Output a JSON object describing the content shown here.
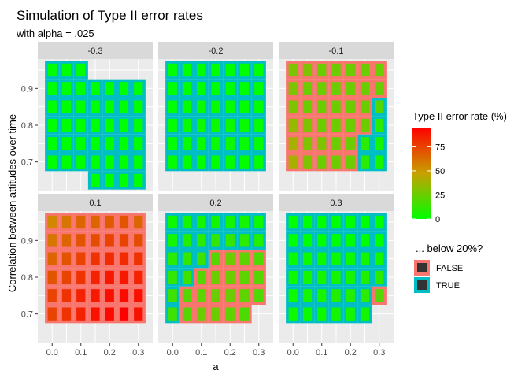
{
  "chart_data": {
    "type": "heatmap",
    "title": "Simulation of Type II error rates",
    "subtitle": "with alpha = .025",
    "xlabel": "a",
    "ylabel": "Correlation between attitudes over time",
    "x_ticks": [
      "0.0",
      "0.1",
      "0.2",
      "0.3"
    ],
    "x_tick_values": [
      0.0,
      0.1,
      0.2,
      0.3
    ],
    "y_ticks": [
      "0.7",
      "0.8",
      "0.9"
    ],
    "y_tick_values": [
      0.7,
      0.8,
      0.9
    ],
    "xlim": [
      -0.05,
      0.35
    ],
    "ylim": [
      0.62,
      0.98
    ],
    "grid_x": [
      0,
      0.05,
      0.1,
      0.15,
      0.2,
      0.25,
      0.3
    ],
    "grid_y": [
      0.7,
      0.75,
      0.8,
      0.85,
      0.9,
      0.95
    ],
    "legend_fill": {
      "title": "Type II error rate (%)",
      "ticks": [
        "0",
        "25",
        "50",
        "75"
      ],
      "tick_values": [
        0,
        25,
        50,
        75
      ],
      "range": [
        0,
        95
      ],
      "colors": [
        "#00ff00",
        "#ff0000"
      ]
    },
    "legend_color": {
      "title": "... below 20%?",
      "items": [
        {
          "label": "FALSE",
          "color": "#f8766d"
        },
        {
          "label": "TRUE",
          "color": "#00bfc4"
        }
      ]
    },
    "panel_bg": "#ebebeb",
    "strip_bg": "#d9d9d9",
    "panels": [
      {
        "label": "-0.3",
        "x0": 0.0,
        "dx": 0.05,
        "y0": 0.7,
        "dy": 0.05,
        "rows": [
          [
            0,
            0,
            0,
            0,
            0,
            0,
            0
          ],
          [
            0,
            0,
            0,
            0,
            0,
            0,
            0
          ],
          [
            0,
            0,
            0,
            0,
            0,
            0,
            0
          ],
          [
            0,
            0,
            0,
            0,
            0,
            0,
            0
          ],
          [
            0,
            0,
            0,
            0,
            0,
            0,
            0
          ],
          [
            0,
            0,
            0,
            null,
            null,
            null,
            null
          ],
          [
            null,
            null,
            null,
            0,
            0,
            0,
            0
          ]
        ],
        "flags": [
          [
            1,
            1,
            1,
            1,
            1,
            1,
            1
          ],
          [
            1,
            1,
            1,
            1,
            1,
            1,
            1
          ],
          [
            1,
            1,
            1,
            1,
            1,
            1,
            1
          ],
          [
            1,
            1,
            1,
            1,
            1,
            1,
            1
          ],
          [
            1,
            1,
            1,
            1,
            1,
            1,
            1
          ],
          [
            1,
            1,
            1,
            0,
            0,
            0,
            0
          ],
          [
            0,
            0,
            0,
            1,
            1,
            1,
            1
          ]
        ],
        "row_y": [
          0.7,
          0.75,
          0.8,
          0.85,
          0.9,
          0.95,
          0.65
        ]
      },
      {
        "label": "-0.2",
        "x0": 0.0,
        "dx": 0.05,
        "y0": 0.7,
        "dy": 0.05,
        "rows": [
          [
            1,
            1,
            1,
            1,
            1,
            1,
            1
          ],
          [
            1,
            2,
            2,
            3,
            3,
            2,
            1
          ],
          [
            1,
            2,
            3,
            3,
            3,
            2,
            1
          ],
          [
            0,
            1,
            2,
            2,
            1,
            1,
            0
          ],
          [
            0,
            0,
            0,
            0,
            0,
            0,
            0
          ],
          [
            0,
            0,
            0,
            0,
            0,
            0,
            0
          ]
        ],
        "flags": [
          [
            1,
            1,
            1,
            1,
            1,
            1,
            1
          ],
          [
            1,
            1,
            1,
            1,
            1,
            1,
            1
          ],
          [
            1,
            1,
            1,
            1,
            1,
            1,
            1
          ],
          [
            1,
            1,
            1,
            1,
            1,
            1,
            1
          ],
          [
            1,
            1,
            1,
            1,
            1,
            1,
            1
          ],
          [
            1,
            1,
            1,
            1,
            1,
            1,
            1
          ]
        ],
        "row_y": [
          0.7,
          0.75,
          0.8,
          0.85,
          0.9,
          0.95
        ]
      },
      {
        "label": "-0.1",
        "x0": 0.0,
        "dx": 0.05,
        "y0": 0.7,
        "dy": 0.05,
        "rows": [
          [
            40,
            30,
            25,
            25,
            25,
            10,
            5
          ],
          [
            40,
            30,
            30,
            25,
            25,
            10,
            5
          ],
          [
            35,
            30,
            25,
            25,
            25,
            25,
            10
          ],
          [
            30,
            25,
            25,
            25,
            25,
            25,
            20
          ],
          [
            30,
            25,
            25,
            25,
            25,
            25,
            25
          ],
          [
            30,
            30,
            25,
            25,
            25,
            25,
            25
          ]
        ],
        "flags": [
          [
            0,
            0,
            0,
            0,
            0,
            1,
            1
          ],
          [
            0,
            0,
            0,
            0,
            0,
            1,
            1
          ],
          [
            0,
            0,
            0,
            0,
            0,
            0,
            1
          ],
          [
            0,
            0,
            0,
            0,
            0,
            0,
            1
          ],
          [
            0,
            0,
            0,
            0,
            0,
            0,
            0
          ],
          [
            0,
            0,
            0,
            0,
            0,
            0,
            0
          ]
        ],
        "row_y": [
          0.7,
          0.75,
          0.8,
          0.85,
          0.9,
          0.95
        ]
      },
      {
        "label": "0.1",
        "x0": 0.0,
        "dx": 0.05,
        "y0": 0.7,
        "dy": 0.05,
        "rows": [
          [
            75,
            80,
            85,
            90,
            92,
            95,
            90
          ],
          [
            75,
            80,
            85,
            88,
            90,
            92,
            90
          ],
          [
            70,
            75,
            80,
            85,
            88,
            88,
            85
          ],
          [
            65,
            70,
            75,
            80,
            82,
            82,
            80
          ],
          [
            60,
            65,
            70,
            72,
            75,
            75,
            72
          ],
          [
            55,
            60,
            65,
            65,
            68,
            70,
            65
          ]
        ],
        "flags": [
          [
            0,
            0,
            0,
            0,
            0,
            0,
            0
          ],
          [
            0,
            0,
            0,
            0,
            0,
            0,
            0
          ],
          [
            0,
            0,
            0,
            0,
            0,
            0,
            0
          ],
          [
            0,
            0,
            0,
            0,
            0,
            0,
            0
          ],
          [
            0,
            0,
            0,
            0,
            0,
            0,
            0
          ],
          [
            0,
            0,
            0,
            0,
            0,
            0,
            0
          ]
        ],
        "row_y": [
          0.7,
          0.75,
          0.8,
          0.85,
          0.9,
          0.95
        ]
      },
      {
        "label": "0.2",
        "x0": 0.0,
        "dx": 0.05,
        "y0": 0.7,
        "dy": 0.05,
        "rows": [
          [
            15,
            20,
            25,
            25,
            22,
            18,
            null
          ],
          [
            15,
            20,
            22,
            25,
            25,
            22,
            18
          ],
          [
            12,
            15,
            20,
            25,
            25,
            22,
            20
          ],
          [
            10,
            12,
            15,
            20,
            25,
            22,
            18
          ],
          [
            5,
            8,
            10,
            12,
            12,
            10,
            8
          ],
          [
            3,
            5,
            5,
            5,
            5,
            5,
            3
          ]
        ],
        "flags": [
          [
            1,
            0,
            0,
            0,
            0,
            0,
            0
          ],
          [
            1,
            0,
            0,
            0,
            0,
            0,
            0
          ],
          [
            1,
            1,
            0,
            0,
            0,
            0,
            0
          ],
          [
            1,
            1,
            1,
            0,
            0,
            0,
            0
          ],
          [
            1,
            1,
            1,
            1,
            1,
            1,
            1
          ],
          [
            1,
            1,
            1,
            1,
            1,
            1,
            1
          ]
        ],
        "row_y": [
          0.7,
          0.75,
          0.8,
          0.85,
          0.9,
          0.95
        ]
      },
      {
        "label": "0.3",
        "x0": 0.0,
        "dx": 0.05,
        "y0": 0.7,
        "dy": 0.05,
        "rows": [
          [
            3,
            3,
            3,
            5,
            5,
            5,
            null
          ],
          [
            3,
            5,
            5,
            8,
            8,
            10,
            20
          ],
          [
            3,
            5,
            5,
            5,
            5,
            8,
            10
          ],
          [
            2,
            3,
            3,
            3,
            3,
            5,
            5
          ],
          [
            0,
            0,
            0,
            0,
            0,
            0,
            0
          ],
          [
            0,
            0,
            0,
            0,
            0,
            0,
            0
          ]
        ],
        "flags": [
          [
            1,
            1,
            1,
            1,
            1,
            1,
            0
          ],
          [
            1,
            1,
            1,
            1,
            1,
            1,
            0
          ],
          [
            1,
            1,
            1,
            1,
            1,
            1,
            1
          ],
          [
            1,
            1,
            1,
            1,
            1,
            1,
            1
          ],
          [
            1,
            1,
            1,
            1,
            1,
            1,
            1
          ],
          [
            1,
            1,
            1,
            1,
            1,
            1,
            1
          ]
        ],
        "row_y": [
          0.7,
          0.75,
          0.8,
          0.85,
          0.9,
          0.95
        ]
      }
    ]
  }
}
